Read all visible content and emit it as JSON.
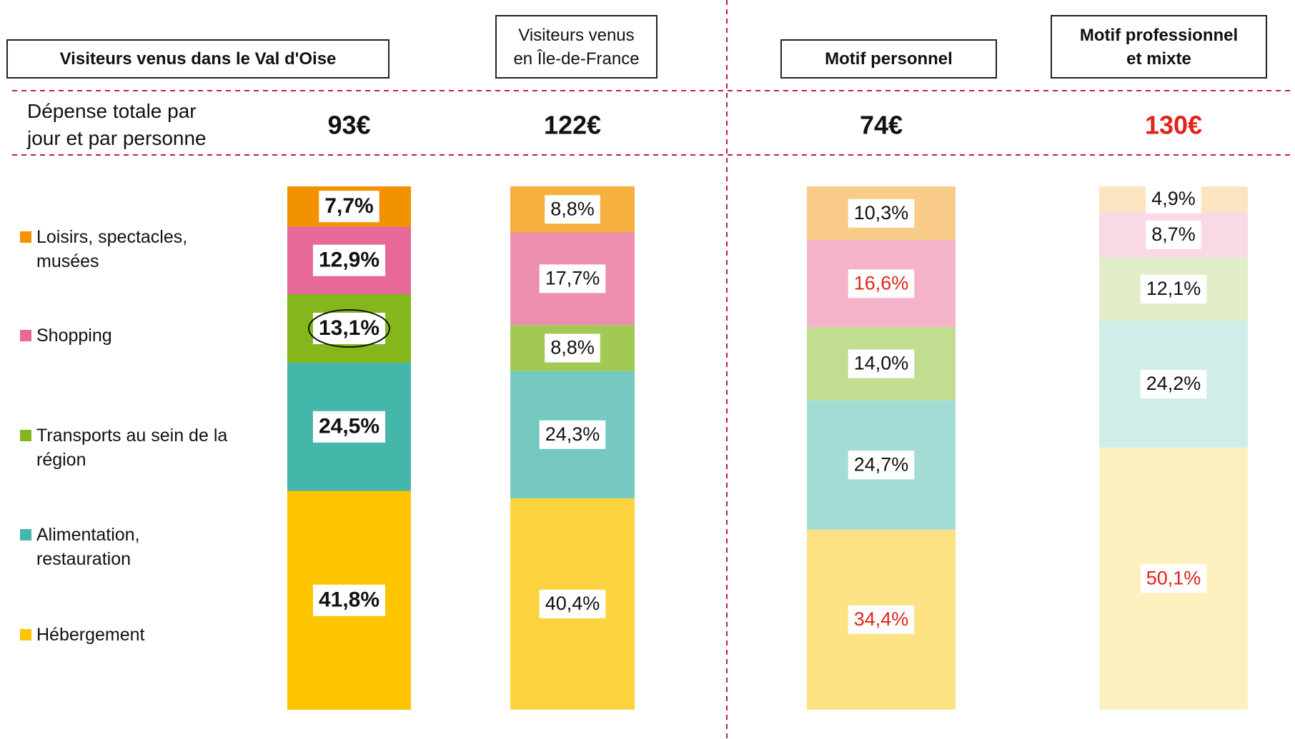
{
  "chart_data": {
    "type": "stacked_bar",
    "categories": [
      "Visiteurs venus dans le Val d'Oise",
      "Visiteurs venus\nen Île-de-France",
      "Motif personnel",
      "Motif professionnel\net mixte"
    ],
    "spend": {
      "label": "Dépense totale par\njour et par personne",
      "values": [
        93,
        122,
        74,
        130
      ],
      "value_labels": [
        "93€",
        "122€",
        "74€",
        "130€"
      ],
      "label_colors": [
        "#111111",
        "#111111",
        "#111111",
        "#e2231a"
      ]
    },
    "ylim": [
      0,
      100
    ],
    "series": [
      {
        "name": "Loisirs, spectacles,\nmusées",
        "color": "#f39200",
        "colors": [
          "#f39200",
          "#f6b040",
          "#f8cc88",
          "#fde4c0"
        ],
        "values": [
          7.7,
          8.8,
          10.3,
          4.9
        ],
        "value_labels": [
          "7,7%",
          "8,8%",
          "10,3%",
          "4,9%"
        ],
        "label_colors": [
          "#111111",
          "#111111",
          "#111111",
          "#111111"
        ]
      },
      {
        "name": "Shopping",
        "color": "#e9689a",
        "colors": [
          "#e9689a",
          "#ef8fb0",
          "#f4b3cb",
          "#f8d9e5"
        ],
        "values": [
          12.9,
          17.7,
          16.6,
          8.7
        ],
        "value_labels": [
          "12,9%",
          "17,7%",
          "16,6%",
          "8,7%"
        ],
        "label_colors": [
          "#111111",
          "#111111",
          "#e2231a",
          "#111111"
        ]
      },
      {
        "name": "Transports au sein de la\nrégion",
        "color": "#84b71b",
        "colors": [
          "#84b71b",
          "#a2c954",
          "#c2dd90",
          "#e1eec8"
        ],
        "values": [
          13.1,
          8.8,
          14.0,
          12.1
        ],
        "value_labels": [
          "13,1%",
          "8,8%",
          "14,0%",
          "12,1%"
        ],
        "label_colors": [
          "#111111",
          "#111111",
          "#111111",
          "#111111"
        ]
      },
      {
        "name": "Alimentation,\nrestauration",
        "color": "#45b6aa",
        "colors": [
          "#45b6aa",
          "#75c9c0",
          "#a3dcd5",
          "#d1edea"
        ],
        "values": [
          24.5,
          24.3,
          24.7,
          24.2
        ],
        "value_labels": [
          "24,5%",
          "24,3%",
          "24,7%",
          "24,2%"
        ],
        "label_colors": [
          "#111111",
          "#111111",
          "#111111",
          "#111111"
        ]
      },
      {
        "name": "Hébergement",
        "color": "#fdc500",
        "colors": [
          "#fdc500",
          "#fdd440",
          "#fde283",
          "#fef1c0"
        ],
        "values": [
          41.8,
          40.4,
          34.4,
          50.1
        ],
        "value_labels": [
          "41,8%",
          "40,4%",
          "34,4%",
          "50,1%"
        ],
        "label_colors": [
          "#111111",
          "#111111",
          "#e2231a",
          "#e2231a"
        ]
      }
    ]
  }
}
